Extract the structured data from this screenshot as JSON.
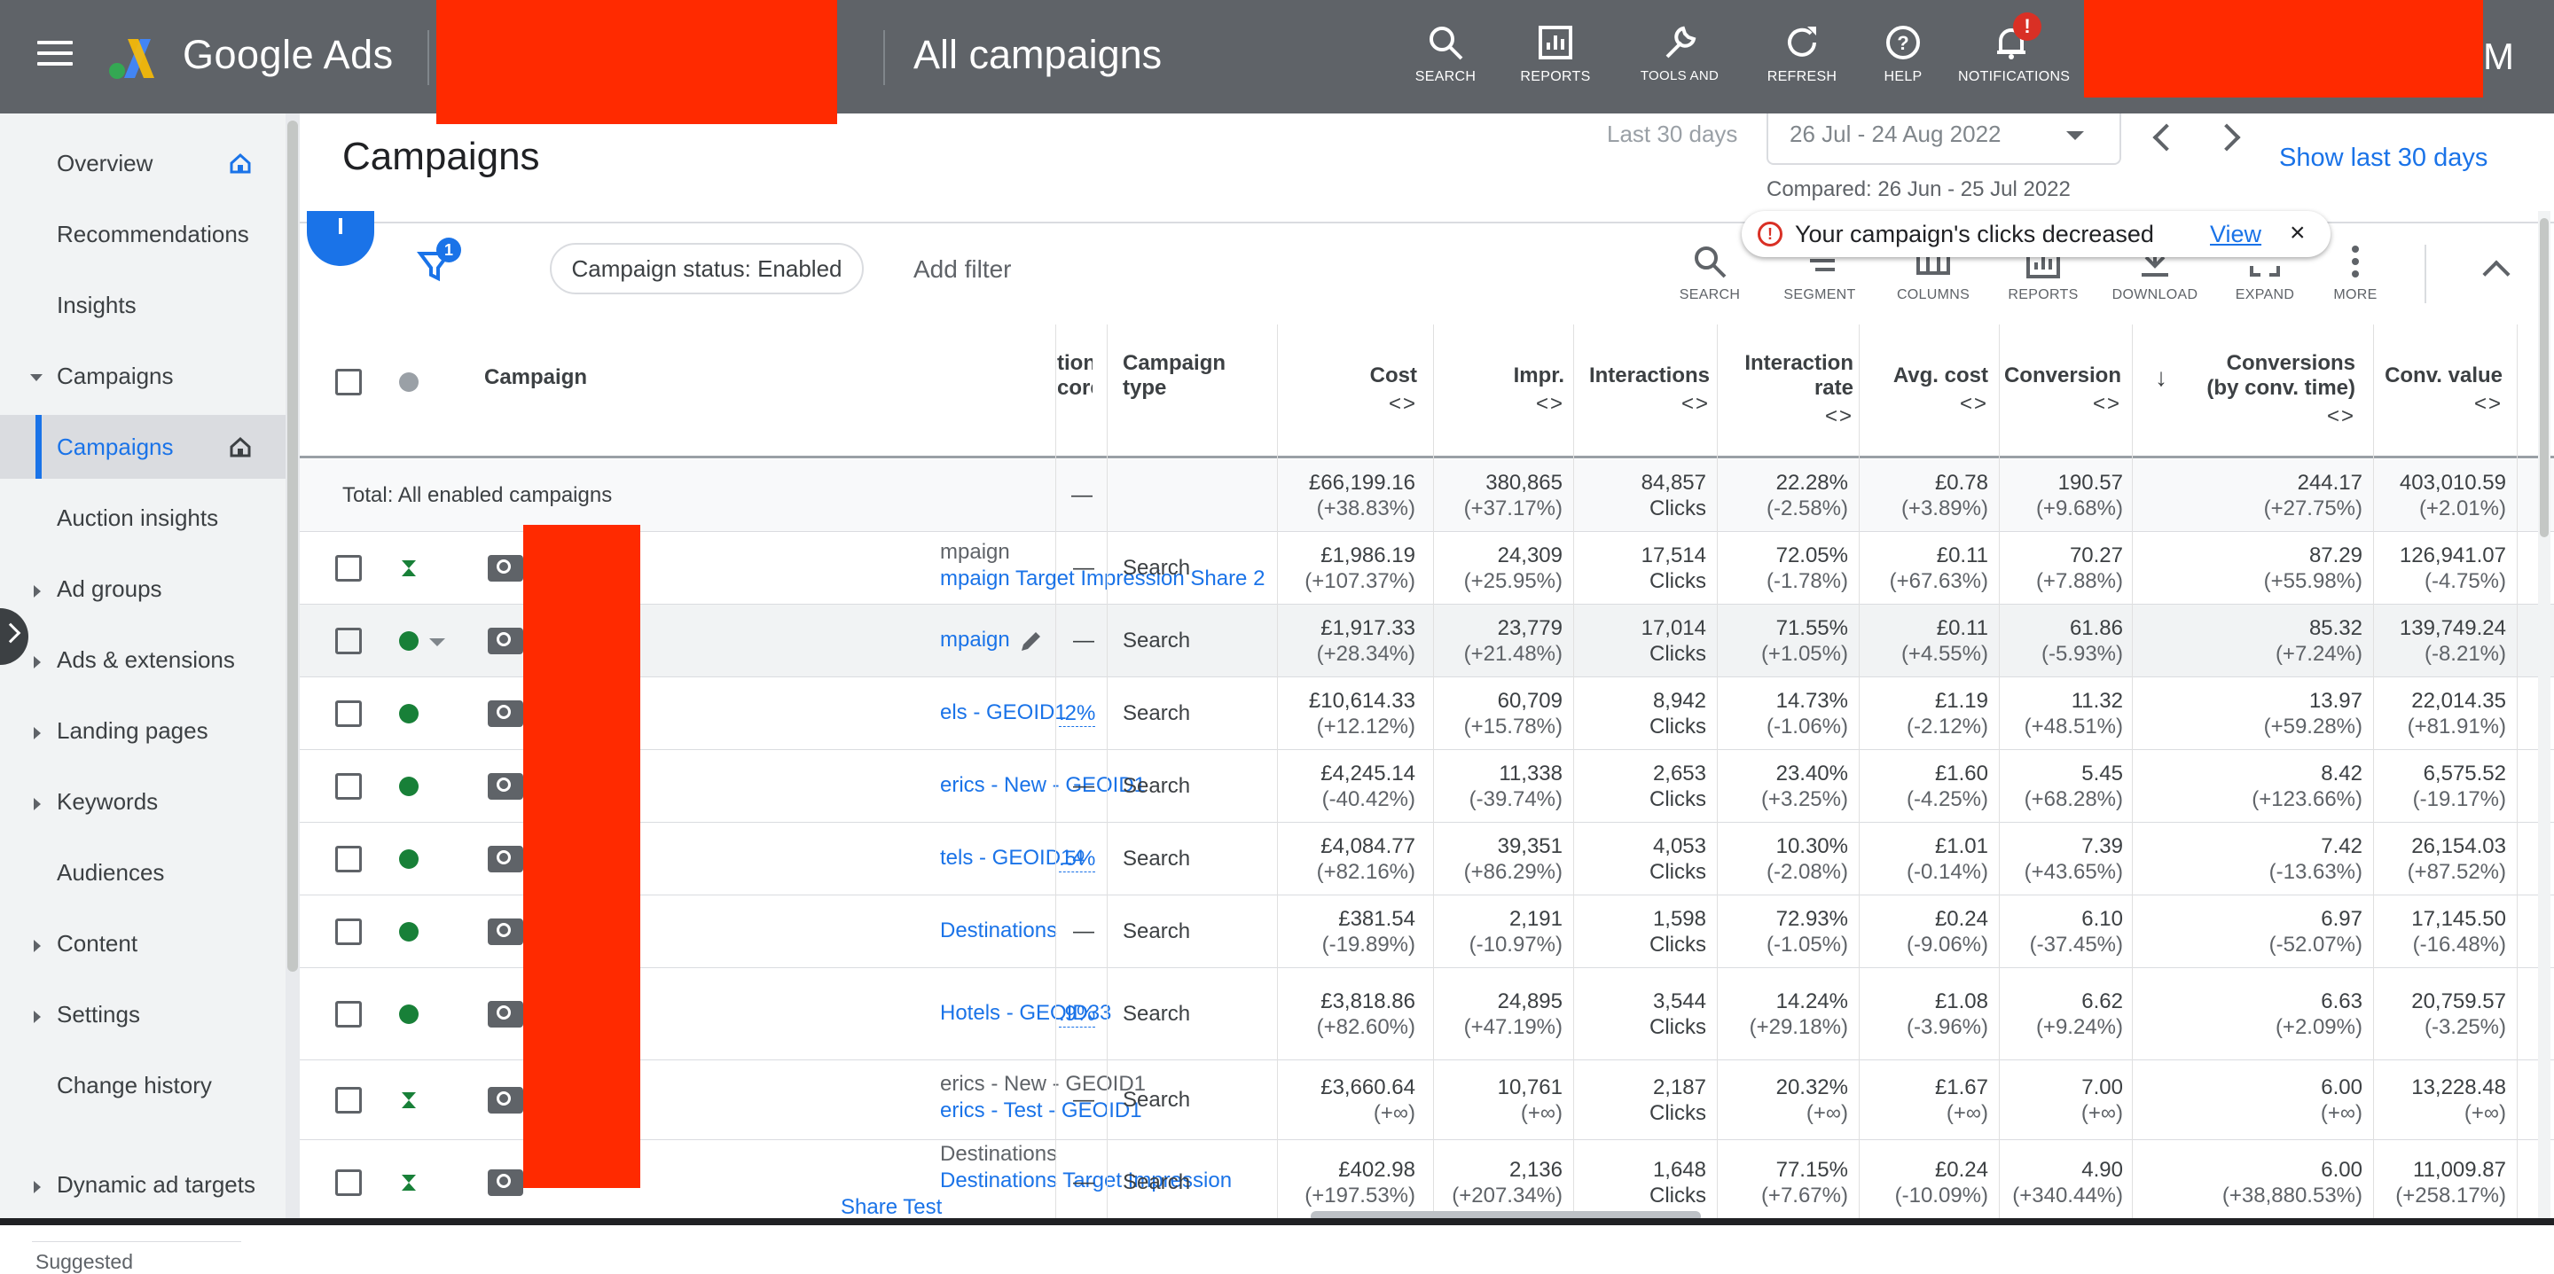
{
  "app": {
    "brand": "Google Ads",
    "page_name": "All campaigns",
    "avatar_letter": "M"
  },
  "topbar": {
    "buttons": [
      {
        "label": "SEARCH",
        "icon": "search-icon"
      },
      {
        "label": "REPORTS",
        "icon": "reports-icon"
      },
      {
        "label": "TOOLS AND SETTINGS",
        "icon": "wrench-icon"
      },
      {
        "label": "REFRESH",
        "icon": "refresh-icon"
      },
      {
        "label": "HELP",
        "icon": "help-icon"
      },
      {
        "label": "NOTIFICATIONS",
        "icon": "bell-icon"
      }
    ],
    "notification_badge": "!"
  },
  "sidebar": {
    "items": [
      {
        "label": "Overview"
      },
      {
        "label": "Recommendations"
      },
      {
        "label": "Insights"
      },
      {
        "label": "Campaigns"
      },
      {
        "label": "Campaigns"
      },
      {
        "label": "Auction insights"
      },
      {
        "label": "Ad groups"
      },
      {
        "label": "Ads & extensions"
      },
      {
        "label": "Landing pages"
      },
      {
        "label": "Keywords"
      },
      {
        "label": "Audiences"
      },
      {
        "label": "Content"
      },
      {
        "label": "Settings"
      },
      {
        "label": "Change history"
      },
      {
        "label": "Dynamic ad targets"
      }
    ],
    "suggested_label": "Suggested"
  },
  "header": {
    "title": "Campaigns",
    "date_label": "Last 30 days",
    "date_range": "26 Jul - 24 Aug 2022",
    "compared": "Compared: 26 Jun - 25 Jul 2022",
    "show_last": "Show last 30 days"
  },
  "alert": {
    "message": "Your campaign's clicks decreased",
    "link": "View",
    "close": "×"
  },
  "toolbar": {
    "filter_count": "1",
    "fab_label": "+",
    "chip": "Campaign status: Enabled",
    "add_filter": "Add filter",
    "actions": [
      {
        "label": "SEARCH",
        "icon": "search-icon"
      },
      {
        "label": "SEGMENT",
        "icon": "segment-icon"
      },
      {
        "label": "COLUMNS",
        "icon": "columns-icon"
      },
      {
        "label": "REPORTS",
        "icon": "reports-icon"
      },
      {
        "label": "DOWNLOAD",
        "icon": "download-icon"
      },
      {
        "label": "EXPAND",
        "icon": "expand-icon"
      },
      {
        "label": "MORE",
        "icon": "more-vert-icon"
      }
    ]
  },
  "table": {
    "headers": {
      "campaign": "Campaign",
      "opt_score": "tion core",
      "type": "Campaign type",
      "cost": "Cost",
      "impr": "Impr.",
      "interactions": "Interactions",
      "interaction_rate": "Interaction rate",
      "avg_cost": "Avg. cost",
      "conversions": "Conversion",
      "conv_by_time": "Conversions (by conv. time)",
      "conv_value": "Conv. value",
      "sort_icon": "<>",
      "sort_arrow": "↓"
    },
    "total": {
      "label": "Total: All enabled campaigns",
      "opt": "—",
      "cost": "£66,199.16",
      "cost_ch": "(+38.83%)",
      "impr": "380,865",
      "impr_ch": "(+37.17%)",
      "inter": "84,857",
      "inter_unit": "Clicks",
      "rate": "22.28%",
      "rate_ch": "(-2.58%)",
      "avg": "£0.78",
      "avg_ch": "(+3.89%)",
      "conv": "190.57",
      "conv_ch": "(+9.68%)",
      "convt": "244.17",
      "convt_ch": "(+27.75%)",
      "value": "403,010.59",
      "value_ch": "(+2.01%)"
    },
    "rows": [
      {
        "status": "pending",
        "name_top": "mpaign",
        "name": "mpaign Target Impression Share 2",
        "opt": "—",
        "type": "Search",
        "cost": "£1,986.19",
        "cost_ch": "(+107.37%)",
        "impr": "24,309",
        "impr_ch": "(+25.95%)",
        "inter": "17,514",
        "inter_unit": "Clicks",
        "rate": "72.05%",
        "rate_ch": "(-1.78%)",
        "avg": "£0.11",
        "avg_ch": "(+67.63%)",
        "conv": "70.27",
        "conv_ch": "(+7.88%)",
        "convt": "87.29",
        "convt_ch": "(+55.98%)",
        "value": "126,941.07",
        "value_ch": "(-4.75%)"
      },
      {
        "status": "enabled",
        "name": "mpaign",
        "opt": "—",
        "type": "Search",
        "cost": "£1,917.33",
        "cost_ch": "(+28.34%)",
        "impr": "23,779",
        "impr_ch": "(+21.48%)",
        "inter": "17,014",
        "inter_unit": "Clicks",
        "rate": "71.55%",
        "rate_ch": "(+1.05%)",
        "avg": "£0.11",
        "avg_ch": "(+4.55%)",
        "conv": "61.86",
        "conv_ch": "(-5.93%)",
        "convt": "85.32",
        "convt_ch": "(+7.24%)",
        "value": "139,749.24",
        "value_ch": "(-8.21%)"
      },
      {
        "status": "enabled",
        "name": "els - GEOID1",
        "opt": ".2%",
        "type": "Search",
        "cost": "£10,614.33",
        "cost_ch": "(+12.12%)",
        "impr": "60,709",
        "impr_ch": "(+15.78%)",
        "inter": "8,942",
        "inter_unit": "Clicks",
        "rate": "14.73%",
        "rate_ch": "(-1.06%)",
        "avg": "£1.19",
        "avg_ch": "(-2.12%)",
        "conv": "11.32",
        "conv_ch": "(+48.51%)",
        "convt": "13.97",
        "convt_ch": "(+59.28%)",
        "value": "22,014.35",
        "value_ch": "(+81.91%)"
      },
      {
        "status": "enabled",
        "name": "erics - New - GEOID1",
        "opt": "—",
        "type": "Search",
        "cost": "£4,245.14",
        "cost_ch": "(-40.42%)",
        "impr": "11,338",
        "impr_ch": "(-39.74%)",
        "inter": "2,653",
        "inter_unit": "Clicks",
        "rate": "23.40%",
        "rate_ch": "(+3.25%)",
        "avg": "£1.60",
        "avg_ch": "(-4.25%)",
        "conv": "5.45",
        "conv_ch": "(+68.28%)",
        "convt": "8.42",
        "convt_ch": "(+123.66%)",
        "value": "6,575.52",
        "value_ch": "(-19.17%)"
      },
      {
        "status": "enabled",
        "name": "tels - GEOID14",
        "opt": ".5%",
        "type": "Search",
        "cost": "£4,084.77",
        "cost_ch": "(+82.16%)",
        "impr": "39,351",
        "impr_ch": "(+86.29%)",
        "inter": "4,053",
        "inter_unit": "Clicks",
        "rate": "10.30%",
        "rate_ch": "(-2.08%)",
        "avg": "£1.01",
        "avg_ch": "(-0.14%)",
        "conv": "7.39",
        "conv_ch": "(+43.65%)",
        "convt": "7.42",
        "convt_ch": "(-13.63%)",
        "value": "26,154.03",
        "value_ch": "(+87.52%)"
      },
      {
        "status": "enabled",
        "name": "Destinations",
        "opt": "—",
        "type": "Search",
        "cost": "£381.54",
        "cost_ch": "(-19.89%)",
        "impr": "2,191",
        "impr_ch": "(-10.97%)",
        "inter": "1,598",
        "inter_unit": "Clicks",
        "rate": "72.93%",
        "rate_ch": "(-1.05%)",
        "avg": "£0.24",
        "avg_ch": "(-9.06%)",
        "conv": "6.10",
        "conv_ch": "(-37.45%)",
        "convt": "6.97",
        "convt_ch": "(-52.07%)",
        "value": "17,145.50",
        "value_ch": "(-16.48%)"
      },
      {
        "status": "enabled",
        "name": "Hotels - GEOID33",
        "opt": ".9%",
        "type": "Search",
        "cost": "£3,818.86",
        "cost_ch": "(+82.60%)",
        "impr": "24,895",
        "impr_ch": "(+47.19%)",
        "inter": "3,544",
        "inter_unit": "Clicks",
        "rate": "14.24%",
        "rate_ch": "(+29.18%)",
        "avg": "£1.08",
        "avg_ch": "(-3.96%)",
        "conv": "6.62",
        "conv_ch": "(+9.24%)",
        "convt": "6.63",
        "convt_ch": "(+2.09%)",
        "value": "20,759.57",
        "value_ch": "(-3.25%)"
      },
      {
        "status": "pending",
        "name_top": "erics - New - GEOID1",
        "name": "erics - Test - GEOID1",
        "opt": "—",
        "type": "Search",
        "cost": "£3,660.64",
        "cost_ch": "(+∞)",
        "impr": "10,761",
        "impr_ch": "(+∞)",
        "inter": "2,187",
        "inter_unit": "Clicks",
        "rate": "20.32%",
        "rate_ch": "(+∞)",
        "avg": "£1.67",
        "avg_ch": "(+∞)",
        "conv": "7.00",
        "conv_ch": "(+∞)",
        "convt": "6.00",
        "convt_ch": "(+∞)",
        "value": "13,228.48",
        "value_ch": "(+∞)"
      },
      {
        "status": "pending",
        "name_top": "Destinations",
        "name": "Destinations Target Impression",
        "name_more": "Share Test",
        "opt": "—",
        "type": "Search",
        "cost": "£402.98",
        "cost_ch": "(+197.53%)",
        "impr": "2,136",
        "impr_ch": "(+207.34%)",
        "inter": "1,648",
        "inter_unit": "Clicks",
        "rate": "77.15%",
        "rate_ch": "(+7.67%)",
        "avg": "£0.24",
        "avg_ch": "(-10.09%)",
        "conv": "4.90",
        "conv_ch": "(+340.44%)",
        "convt": "6.00",
        "convt_ch": "(+38,880.53%)",
        "value": "11,009.87",
        "value_ch": "(+258.17%)"
      }
    ]
  },
  "colors": {
    "topbar": "#5f6368",
    "accent": "#1a73e8",
    "enabled": "#188038",
    "redaction": "#ff2a00"
  }
}
